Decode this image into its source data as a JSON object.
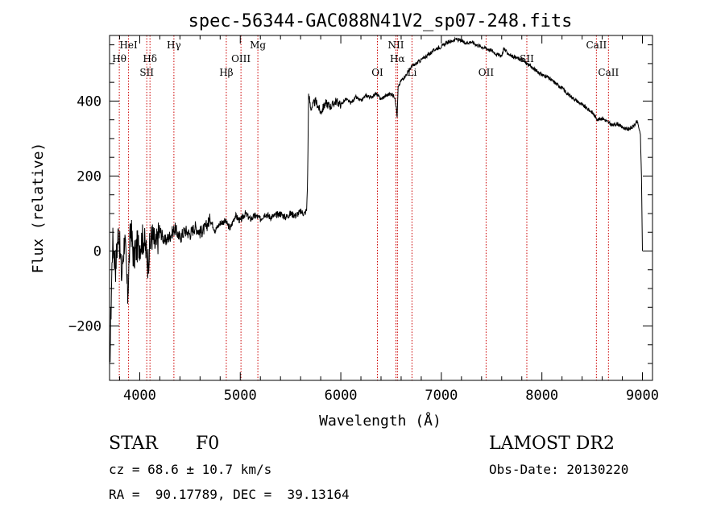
{
  "chart_data": {
    "type": "line",
    "title": "spec-56344-GAC088N41V2_sp07-248.fits",
    "xlabel": "Wavelength (Å)",
    "ylabel": "Flux (relative)",
    "xlim": [
      3700,
      9100
    ],
    "ylim": [
      -345,
      575
    ],
    "xticks": [
      4000,
      5000,
      6000,
      7000,
      8000,
      9000
    ],
    "yticks": [
      -200,
      0,
      200,
      400
    ],
    "grid": false,
    "line_color": "#000000",
    "marker_color": "#cc0000",
    "series": [
      {
        "x": [
          3700,
          3730,
          3760,
          3790,
          3820,
          3850,
          3880,
          3910,
          3940,
          3970,
          4000,
          4040,
          4080,
          4120,
          4160,
          4200,
          4250,
          4300,
          4350,
          4400,
          4450,
          4500,
          4550,
          4600,
          4650,
          4700,
          4750,
          4800,
          4850,
          4900,
          4950,
          5000,
          5050,
          5100,
          5150,
          5200,
          5250,
          5300,
          5350,
          5400,
          5450,
          5500,
          5550,
          5600,
          5640,
          5660,
          5670,
          5680,
          5700,
          5750,
          5800,
          5850,
          5900,
          5950,
          6000,
          6050,
          6100,
          6150,
          6200,
          6250,
          6300,
          6350,
          6400,
          6450,
          6500,
          6540,
          6560,
          6570,
          6600,
          6650,
          6700,
          6750,
          6800,
          6850,
          6900,
          6950,
          7000,
          7050,
          7100,
          7150,
          7200,
          7250,
          7300,
          7350,
          7400,
          7450,
          7500,
          7550,
          7600,
          7620,
          7650,
          7700,
          7750,
          7800,
          7850,
          7900,
          7950,
          8000,
          8050,
          8100,
          8150,
          8200,
          8250,
          8300,
          8350,
          8400,
          8450,
          8500,
          8540,
          8560,
          8600,
          8650,
          8700,
          8750,
          8800,
          8850,
          8900,
          8950,
          8980,
          8990,
          9000
        ],
        "y": [
          -330,
          30,
          -40,
          60,
          -70,
          40,
          -120,
          70,
          -20,
          10,
          20,
          35,
          -30,
          45,
          10,
          55,
          25,
          40,
          60,
          35,
          55,
          45,
          65,
          50,
          60,
          85,
          55,
          75,
          80,
          60,
          95,
          80,
          100,
          85,
          95,
          85,
          100,
          90,
          95,
          100,
          90,
          100,
          95,
          105,
          100,
          110,
          200,
          420,
          380,
          400,
          370,
          395,
          385,
          400,
          390,
          405,
          395,
          410,
          400,
          415,
          410,
          420,
          405,
          415,
          420,
          410,
          360,
          435,
          455,
          470,
          490,
          500,
          510,
          520,
          530,
          540,
          545,
          555,
          560,
          565,
          560,
          555,
          558,
          550,
          545,
          540,
          535,
          525,
          520,
          540,
          530,
          520,
          515,
          510,
          500,
          490,
          480,
          470,
          465,
          455,
          445,
          435,
          420,
          410,
          400,
          390,
          380,
          370,
          355,
          350,
          355,
          345,
          335,
          340,
          330,
          325,
          330,
          345,
          310,
          200,
          0
        ]
      }
    ],
    "line_markers": [
      {
        "x": 3797,
        "label": "Hθ",
        "row": 1
      },
      {
        "x": 3889,
        "label": "HeI",
        "row": 0
      },
      {
        "x": 4070,
        "label": "SII",
        "row": 2
      },
      {
        "x": 4102,
        "label": "Hδ",
        "row": 1
      },
      {
        "x": 4340,
        "label": "Hγ",
        "row": 0
      },
      {
        "x": 4861,
        "label": "Hβ",
        "row": 2
      },
      {
        "x": 5007,
        "label": "OIII",
        "row": 1
      },
      {
        "x": 5175,
        "label": "Mg",
        "row": 0
      },
      {
        "x": 6364,
        "label": "OI",
        "row": 2
      },
      {
        "x": 6548,
        "label": "NII",
        "row": 0
      },
      {
        "x": 6563,
        "label": "Hα",
        "row": 1
      },
      {
        "x": 6708,
        "label": "Li",
        "row": 2
      },
      {
        "x": 7445,
        "label": "OII",
        "row": 2
      },
      {
        "x": 7850,
        "label": "SII",
        "row": 1
      },
      {
        "x": 8542,
        "label": "CaII",
        "row": 0
      },
      {
        "x": 8662,
        "label": "CaII",
        "row": 2
      }
    ]
  },
  "info": {
    "obj_class": "STAR",
    "subclass": "F0",
    "survey": "LAMOST DR2",
    "cz": "cz = 68.6 ± 10.7 km/s",
    "obs_date": "Obs-Date: 20130220",
    "coords": "RA =  90.17789, DEC =  39.13164"
  }
}
